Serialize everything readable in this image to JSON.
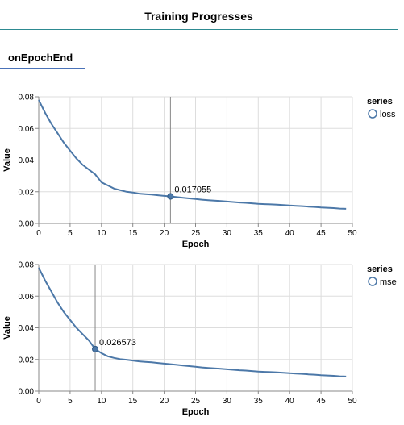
{
  "header": {
    "title": "Training Progresses"
  },
  "section": {
    "tab_label": "onEpochEnd"
  },
  "colors": {
    "line": "#4c78a8",
    "grid": "#dddddd",
    "rule": "#888888",
    "header_border": "#2d8a91",
    "tab_border": "#4a72b8"
  },
  "chart_data": [
    {
      "type": "line",
      "xlabel": "Epoch",
      "ylabel": "Value",
      "xlim": [
        0,
        50
      ],
      "ylim": [
        0,
        0.08
      ],
      "xticks": [
        "0",
        "5",
        "10",
        "15",
        "20",
        "25",
        "30",
        "35",
        "40",
        "45",
        "50"
      ],
      "yticks": [
        "0.00",
        "0.02",
        "0.04",
        "0.06",
        "0.08"
      ],
      "grid": true,
      "legend": {
        "title": "series",
        "position": "right"
      },
      "series": [
        {
          "name": "loss",
          "x": [
            0,
            1,
            2,
            3,
            4,
            5,
            6,
            7,
            8,
            9,
            10,
            11,
            12,
            13,
            14,
            15,
            16,
            17,
            18,
            19,
            20,
            21,
            22,
            23,
            24,
            25,
            26,
            27,
            28,
            29,
            30,
            31,
            32,
            33,
            34,
            35,
            36,
            37,
            38,
            39,
            40,
            41,
            42,
            43,
            44,
            45,
            46,
            47,
            48,
            49
          ],
          "y": [
            0.078,
            0.07,
            0.063,
            0.057,
            0.051,
            0.046,
            0.041,
            0.037,
            0.034,
            0.031,
            0.026,
            0.024,
            0.022,
            0.021,
            0.02,
            0.0195,
            0.0188,
            0.0185,
            0.0182,
            0.0178,
            0.0174,
            0.017055,
            0.0166,
            0.0162,
            0.0158,
            0.0154,
            0.015,
            0.0147,
            0.0144,
            0.0141,
            0.0138,
            0.0135,
            0.0132,
            0.013,
            0.0127,
            0.0124,
            0.0122,
            0.012,
            0.0118,
            0.0116,
            0.0113,
            0.0111,
            0.0109,
            0.0106,
            0.0104,
            0.0101,
            0.0099,
            0.0097,
            0.0094,
            0.0092
          ]
        }
      ],
      "annotation": {
        "x": 21,
        "y": 0.017055,
        "label": "0.017055"
      }
    },
    {
      "type": "line",
      "xlabel": "Epoch",
      "ylabel": "Value",
      "xlim": [
        0,
        50
      ],
      "ylim": [
        0,
        0.08
      ],
      "xticks": [
        "0",
        "5",
        "10",
        "15",
        "20",
        "25",
        "30",
        "35",
        "40",
        "45",
        "50"
      ],
      "yticks": [
        "0.00",
        "0.02",
        "0.04",
        "0.06",
        "0.08"
      ],
      "grid": true,
      "legend": {
        "title": "series",
        "position": "right"
      },
      "series": [
        {
          "name": "mse",
          "x": [
            0,
            1,
            2,
            3,
            4,
            5,
            6,
            7,
            8,
            9,
            10,
            11,
            12,
            13,
            14,
            15,
            16,
            17,
            18,
            19,
            20,
            21,
            22,
            23,
            24,
            25,
            26,
            27,
            28,
            29,
            30,
            31,
            32,
            33,
            34,
            35,
            36,
            37,
            38,
            39,
            40,
            41,
            42,
            43,
            44,
            45,
            46,
            47,
            48,
            49
          ],
          "y": [
            0.078,
            0.07,
            0.063,
            0.056,
            0.05,
            0.045,
            0.04,
            0.036,
            0.032,
            0.026573,
            0.024,
            0.022,
            0.021,
            0.0202,
            0.0198,
            0.0193,
            0.0188,
            0.0185,
            0.0182,
            0.0178,
            0.0174,
            0.017,
            0.0166,
            0.0162,
            0.0158,
            0.0154,
            0.015,
            0.0147,
            0.0144,
            0.0141,
            0.0138,
            0.0135,
            0.0132,
            0.013,
            0.0127,
            0.0124,
            0.0122,
            0.012,
            0.0118,
            0.0116,
            0.0113,
            0.0111,
            0.0109,
            0.0106,
            0.0104,
            0.0101,
            0.0099,
            0.0097,
            0.0094,
            0.0092
          ]
        }
      ],
      "annotation": {
        "x": 9,
        "y": 0.026573,
        "label": "0.026573"
      }
    }
  ]
}
